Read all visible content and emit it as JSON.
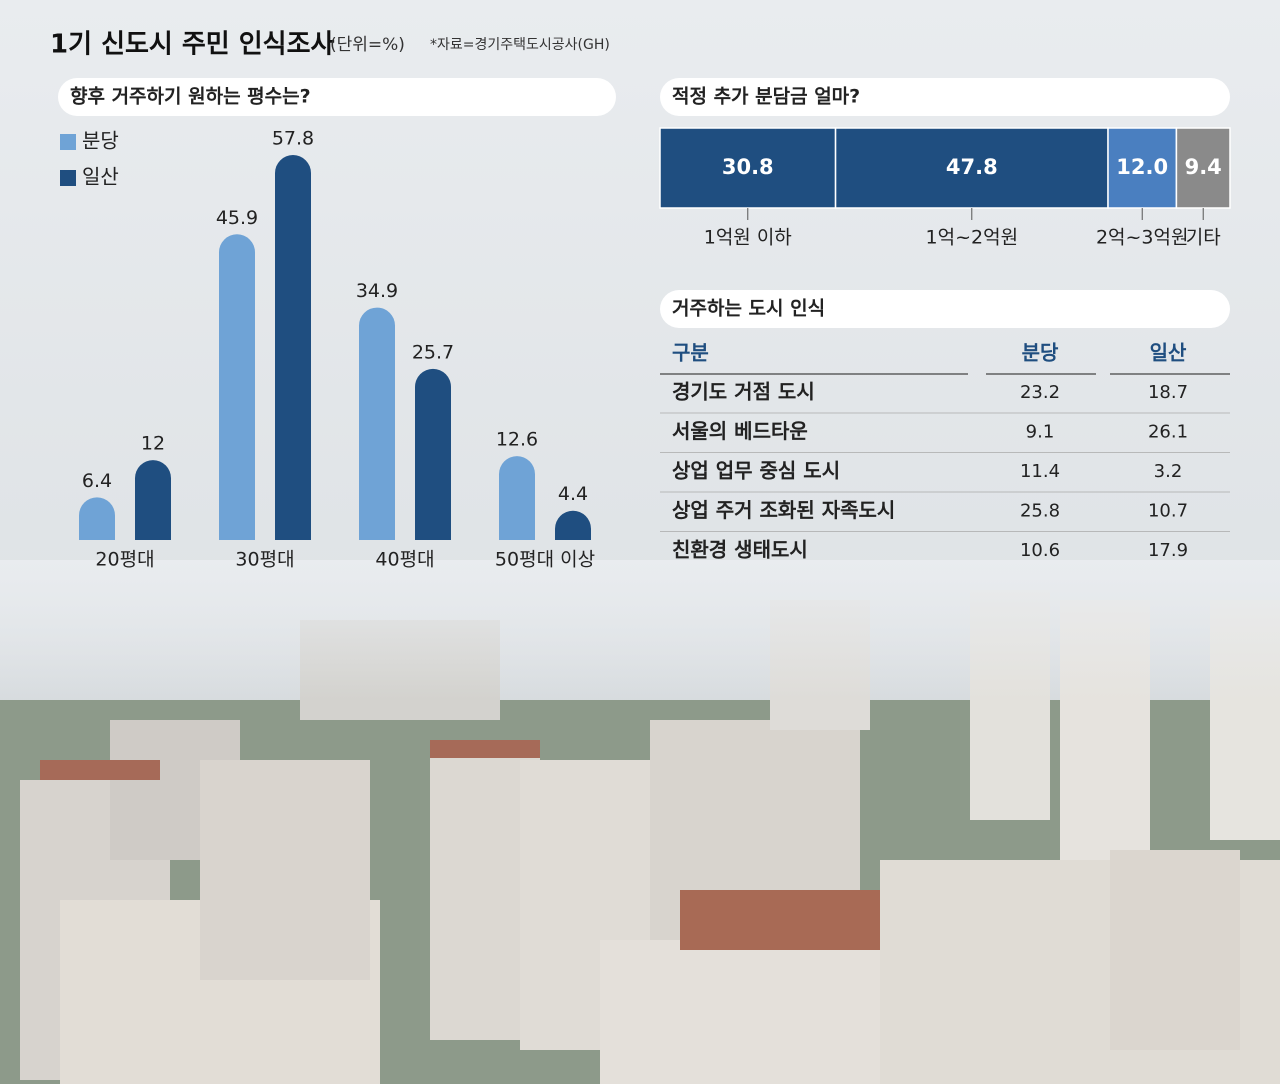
{
  "title": "1기 신도시 주민 인식조사",
  "unit": "(단위=%)",
  "source": "*자료=경기주택도시공사(GH)",
  "chart_data": [
    {
      "type": "bar",
      "title": "향후 거주하기 원하는 평수는?",
      "categories": [
        "20평대",
        "30평대",
        "40평대",
        "50평대 이상"
      ],
      "series": [
        {
          "name": "분당",
          "color": "#6fa3d6",
          "values": [
            6.4,
            45.9,
            34.9,
            12.6
          ]
        },
        {
          "name": "일산",
          "color": "#1f4e80",
          "values": [
            12,
            57.8,
            25.7,
            4.4
          ]
        }
      ]
    },
    {
      "type": "bar",
      "stacked": true,
      "orientation": "horizontal",
      "title": "적정 추가 분담금 얼마?",
      "categories": [
        "1억원 이하",
        "1억~2억원",
        "2억~3억원",
        "기타"
      ],
      "values": [
        30.8,
        47.8,
        12.0,
        9.4
      ],
      "value_labels": [
        "30.8",
        "47.8",
        "12.0",
        "9.4"
      ],
      "colors": [
        "#1f4e80",
        "#1f4e80",
        "#4a7fc0",
        "#8a8a8a"
      ]
    }
  ],
  "table": {
    "title": "거주하는 도시 인식",
    "header": [
      "구분",
      "분당",
      "일산"
    ],
    "rows": [
      [
        "경기도 거점 도시",
        "23.2",
        "18.7"
      ],
      [
        "서울의 베드타운",
        "9.1",
        "26.1"
      ],
      [
        "상업 업무 중심 도시",
        "11.4",
        "3.2"
      ],
      [
        "상업 주거 조화된 자족도시",
        "25.8",
        "10.7"
      ],
      [
        "친환경 생태도시",
        "10.6",
        "17.9"
      ]
    ]
  }
}
